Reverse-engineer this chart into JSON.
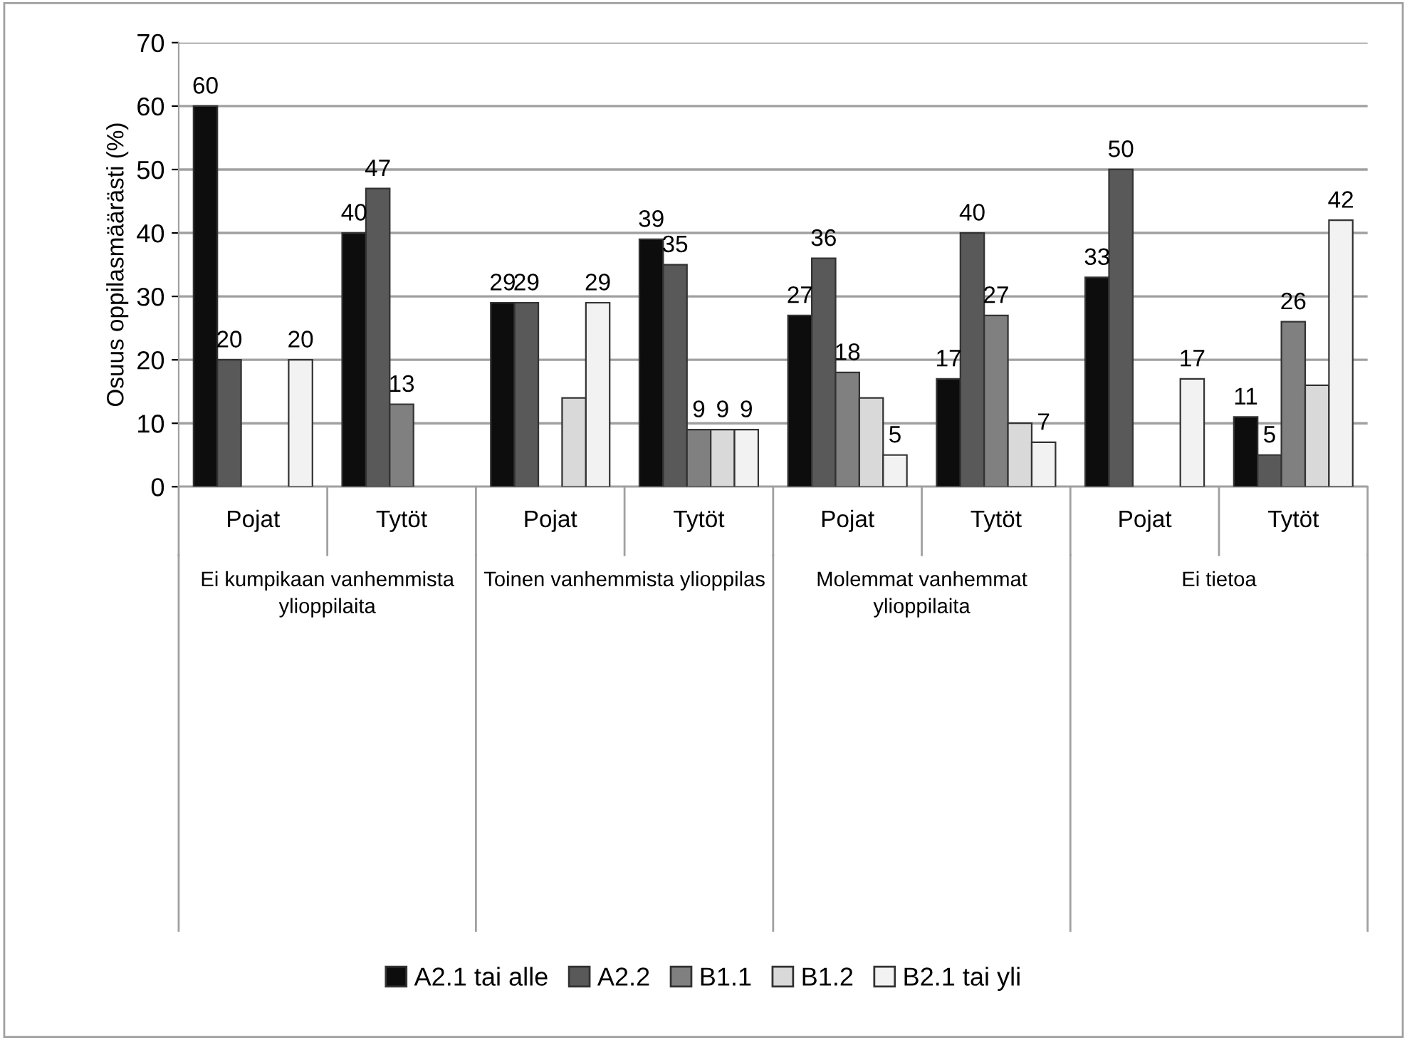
{
  "chart_data": {
    "type": "bar",
    "ylabel": "Osuus oppilasmäärästi (%)",
    "categories": [
      "Pojat",
      "Tytöt",
      "Pojat",
      "Tytöt",
      "Pojat",
      "Tytöt",
      "Pojat",
      "Tytöt"
    ],
    "annotations": [
      "Ei kumpikaan vanhemmista\nylioppilaita",
      "Toinen vanhemmista ylioppilas",
      "Molemmat vanhemmat\nylioppilaita",
      "Ei tietoa"
    ],
    "series": [
      {
        "name": "A2.1 tai alle",
        "color": "#0d0d0d",
        "values": [
          60,
          40,
          29,
          39,
          27,
          17,
          33,
          11
        ],
        "value_labels": [
          "60",
          "40",
          "29",
          "39",
          "27",
          "17",
          "33",
          "11"
        ]
      },
      {
        "name": "A2.2",
        "color": "#595959",
        "values": [
          20,
          47,
          29,
          35,
          36,
          40,
          50,
          5
        ],
        "value_labels": [
          "20",
          "47",
          "29",
          "35",
          "36",
          "40",
          "50",
          "5"
        ]
      },
      {
        "name": "B1.1",
        "color": "#808080",
        "values": [
          null,
          13,
          null,
          9,
          18,
          27,
          null,
          26
        ],
        "value_labels": [
          null,
          "13",
          null,
          "9",
          "18",
          "27",
          null,
          "26"
        ]
      },
      {
        "name": "B1.2",
        "color": "#d9d9d9",
        "values": [
          null,
          null,
          14,
          9,
          14,
          10,
          null,
          16
        ],
        "value_labels": [
          null,
          null,
          null,
          "9",
          null,
          null,
          null,
          null
        ]
      },
      {
        "name": "B2.1 tai yli",
        "color": "#f2f2f2",
        "values": [
          20,
          null,
          29,
          9,
          5,
          7,
          17,
          42
        ],
        "value_labels": [
          "20",
          null,
          "29",
          "9",
          "5",
          "7",
          "17",
          "42"
        ]
      }
    ],
    "ylim": [
      0,
      70
    ],
    "yticks": [
      0,
      10,
      20,
      30,
      40,
      50,
      60,
      70
    ],
    "grid": "y",
    "legend": "bottom"
  }
}
